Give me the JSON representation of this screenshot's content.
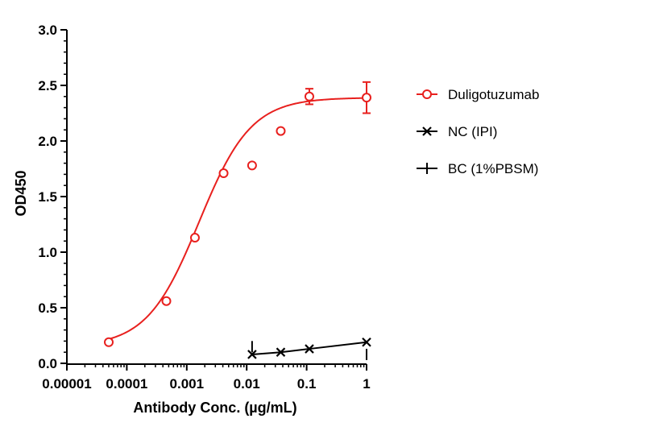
{
  "chart_data": {
    "type": "line",
    "xlabel": "Antibody Conc. (µg/mL)",
    "ylabel": "OD450",
    "x_scale": "log",
    "xlim": [
      1e-05,
      1
    ],
    "ylim": [
      0,
      3.0
    ],
    "x_ticks": [
      1e-05,
      0.0001,
      0.001,
      0.01,
      0.1,
      1
    ],
    "x_tick_labels": [
      "0.00001",
      "0.0001",
      "0.001",
      "0.01",
      "0.1",
      "1"
    ],
    "y_ticks": [
      0,
      0.5,
      1.0,
      1.5,
      2.0,
      2.5,
      3.0
    ],
    "y_tick_labels": [
      "0.0",
      "0.5",
      "1.0",
      "1.5",
      "2.0",
      "2.5",
      "3.0"
    ],
    "legend_position": "right",
    "grid": false,
    "series": [
      {
        "name": "Duligotuzumab",
        "color": "#e8201e",
        "marker": "circle",
        "x": [
          5e-05,
          0.000457,
          0.00137,
          0.00412,
          0.0123,
          0.037,
          0.111,
          1
        ],
        "y": [
          0.19,
          0.56,
          1.13,
          1.71,
          1.78,
          2.09,
          2.4,
          2.39
        ],
        "error": [
          0,
          0,
          0,
          0,
          0,
          0,
          0.07,
          0.14
        ],
        "fit": {
          "model": "4PL",
          "bottom": 0.15,
          "top": 2.39,
          "ec50": 0.0016,
          "hill": 1.0
        }
      },
      {
        "name": "NC (IPI)",
        "color": "#000000",
        "marker": "x",
        "x": [
          0.0123,
          0.037,
          0.111,
          1
        ],
        "y": [
          0.08,
          0.1,
          0.13,
          0.19
        ],
        "error": [
          0,
          0,
          0,
          0
        ],
        "connect": true
      },
      {
        "name": "BC (1%PBSM)",
        "color": "#000000",
        "marker": "plus",
        "x": [
          0.0123,
          1
        ],
        "y": [
          0.15,
          0.08
        ],
        "error": [
          0,
          0
        ],
        "connect": false
      }
    ]
  }
}
